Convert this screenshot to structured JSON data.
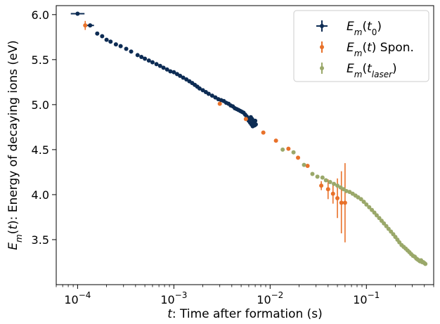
{
  "chart_data": {
    "type": "scatter",
    "x_scale": "log",
    "xlim": [
      6e-05,
      0.5
    ],
    "ylim": [
      3.0,
      6.1
    ],
    "grid": false,
    "legend_position": "top-right",
    "xlabel_parts": [
      {
        "text": "t",
        "italic": true
      },
      {
        "text": ": Time after formation (s)",
        "italic": false
      }
    ],
    "ylabel_parts": [
      {
        "text": "E",
        "italic": true
      },
      {
        "text": "m",
        "italic": true,
        "sub": true
      },
      {
        "text": "(",
        "italic": false
      },
      {
        "text": "t",
        "italic": true
      },
      {
        "text": "): Energy of decaying ions (eV)",
        "italic": false
      }
    ],
    "x_ticks": [
      {
        "value": 0.0001,
        "base": "10",
        "exp": "−4"
      },
      {
        "value": 0.001,
        "base": "10",
        "exp": "−3"
      },
      {
        "value": 0.01,
        "base": "10",
        "exp": "−2"
      },
      {
        "value": 0.1,
        "base": "10",
        "exp": "−1"
      }
    ],
    "y_ticks": [
      {
        "value": 3.5,
        "label": "3.5"
      },
      {
        "value": 4.0,
        "label": "4.0"
      },
      {
        "value": 4.5,
        "label": "4.5"
      },
      {
        "value": 5.0,
        "label": "5.0"
      },
      {
        "value": 5.5,
        "label": "5.5"
      },
      {
        "value": 6.0,
        "label": "6.0"
      }
    ],
    "series": [
      {
        "color": "#0d2c54",
        "legend_parts": [
          {
            "text": "E",
            "italic": true
          },
          {
            "text": "m",
            "italic": true,
            "sub": true
          },
          {
            "text": "(",
            "italic": false
          },
          {
            "text": "t",
            "italic": true
          },
          {
            "text": "0",
            "italic": false,
            "sub": true
          },
          {
            "text": ")",
            "italic": false
          }
        ],
        "points": [
          {
            "x": 0.0001,
            "y": 6.01,
            "xerr": [
              8.5e-05,
              0.000118
            ]
          },
          {
            "x": 0.000135,
            "y": 5.88,
            "xerr": [
              0.000125,
              0.000148
            ]
          },
          {
            "x": 0.00016,
            "y": 5.79
          },
          {
            "x": 0.00018,
            "y": 5.76
          },
          {
            "x": 0.0002,
            "y": 5.72
          },
          {
            "x": 0.00022,
            "y": 5.7
          },
          {
            "x": 0.00025,
            "y": 5.67
          },
          {
            "x": 0.00028,
            "y": 5.65
          },
          {
            "x": 0.00032,
            "y": 5.62
          },
          {
            "x": 0.00036,
            "y": 5.59
          },
          {
            "x": 0.00042,
            "y": 5.55
          },
          {
            "x": 0.00046,
            "y": 5.53
          },
          {
            "x": 0.0005,
            "y": 5.51
          },
          {
            "x": 0.00055,
            "y": 5.49
          },
          {
            "x": 0.0006,
            "y": 5.47
          },
          {
            "x": 0.00066,
            "y": 5.45
          },
          {
            "x": 0.00072,
            "y": 5.43
          },
          {
            "x": 0.00078,
            "y": 5.41
          },
          {
            "x": 0.00085,
            "y": 5.39
          },
          {
            "x": 0.00092,
            "y": 5.37
          },
          {
            "x": 0.001,
            "y": 5.36
          },
          {
            "x": 0.00108,
            "y": 5.34
          },
          {
            "x": 0.00116,
            "y": 5.32
          },
          {
            "x": 0.00125,
            "y": 5.3
          },
          {
            "x": 0.00135,
            "y": 5.28
          },
          {
            "x": 0.00145,
            "y": 5.26
          },
          {
            "x": 0.00155,
            "y": 5.24
          },
          {
            "x": 0.00165,
            "y": 5.22
          },
          {
            "x": 0.00175,
            "y": 5.2
          },
          {
            "x": 0.00185,
            "y": 5.18
          },
          {
            "x": 0.002,
            "y": 5.16
          },
          {
            "x": 0.00215,
            "y": 5.14
          },
          {
            "x": 0.0023,
            "y": 5.12
          },
          {
            "x": 0.0025,
            "y": 5.1
          },
          {
            "x": 0.0027,
            "y": 5.08
          },
          {
            "x": 0.0029,
            "y": 5.06
          },
          {
            "x": 0.0031,
            "y": 5.05
          },
          {
            "x": 0.0033,
            "y": 5.04
          },
          {
            "x": 0.0035,
            "y": 5.02
          },
          {
            "x": 0.0037,
            "y": 5.01
          },
          {
            "x": 0.0039,
            "y": 4.99
          },
          {
            "x": 0.0041,
            "y": 4.98
          },
          {
            "x": 0.0043,
            "y": 4.96
          },
          {
            "x": 0.0045,
            "y": 4.95
          },
          {
            "x": 0.0047,
            "y": 4.94
          },
          {
            "x": 0.0049,
            "y": 4.93
          },
          {
            "x": 0.0051,
            "y": 4.92
          },
          {
            "x": 0.0053,
            "y": 4.91
          },
          {
            "x": 0.0055,
            "y": 4.89
          },
          {
            "x": 0.0057,
            "y": 4.87
          },
          {
            "x": 0.0059,
            "y": 4.85
          },
          {
            "x": 0.006,
            "y": 4.82
          },
          {
            "x": 0.0062,
            "y": 4.8
          },
          {
            "x": 0.0063,
            "y": 4.86
          },
          {
            "x": 0.0064,
            "y": 4.78
          },
          {
            "x": 0.0065,
            "y": 4.84
          },
          {
            "x": 0.0066,
            "y": 4.76
          },
          {
            "x": 0.0067,
            "y": 4.81
          },
          {
            "x": 0.0068,
            "y": 4.79
          },
          {
            "x": 0.0069,
            "y": 4.77
          },
          {
            "x": 0.007,
            "y": 4.82
          },
          {
            "x": 0.0071,
            "y": 4.78
          }
        ]
      },
      {
        "color": "#e8712a",
        "legend_parts": [
          {
            "text": "E",
            "italic": true
          },
          {
            "text": "m",
            "italic": true,
            "sub": true
          },
          {
            "text": "(",
            "italic": false
          },
          {
            "text": "t",
            "italic": true
          },
          {
            "text": ") Spon.",
            "italic": false
          }
        ],
        "points": [
          {
            "x": 0.00012,
            "y": 5.88,
            "yerr": [
              5.83,
              5.93
            ]
          },
          {
            "x": 0.003,
            "y": 5.01
          },
          {
            "x": 0.0056,
            "y": 4.84
          },
          {
            "x": 0.0085,
            "y": 4.69
          },
          {
            "x": 0.0115,
            "y": 4.6
          },
          {
            "x": 0.0155,
            "y": 4.51
          },
          {
            "x": 0.0195,
            "y": 4.41
          },
          {
            "x": 0.0245,
            "y": 4.32
          },
          {
            "x": 0.034,
            "y": 4.1,
            "yerr": [
              4.05,
              4.15
            ]
          },
          {
            "x": 0.04,
            "y": 4.06,
            "yerr": [
              3.95,
              4.17
            ]
          },
          {
            "x": 0.045,
            "y": 4.01,
            "yerr": [
              3.9,
              4.12
            ]
          },
          {
            "x": 0.05,
            "y": 3.96,
            "yerr": [
              3.74,
              4.18
            ]
          },
          {
            "x": 0.055,
            "y": 3.91,
            "yerr": [
              3.57,
              4.26
            ]
          },
          {
            "x": 0.06,
            "y": 3.91,
            "yerr": [
              3.47,
              4.35
            ]
          }
        ]
      },
      {
        "color": "#9aa86a",
        "legend_parts": [
          {
            "text": "E",
            "italic": true
          },
          {
            "text": "m",
            "italic": true,
            "sub": true
          },
          {
            "text": "(",
            "italic": false
          },
          {
            "text": "t",
            "italic": true
          },
          {
            "text": "laser",
            "italic": true,
            "sub": true
          },
          {
            "text": ")",
            "italic": false
          }
        ],
        "points": [
          {
            "x": 0.0135,
            "y": 4.5
          },
          {
            "x": 0.0175,
            "y": 4.47
          },
          {
            "x": 0.0225,
            "y": 4.33
          },
          {
            "x": 0.0275,
            "y": 4.23
          },
          {
            "x": 0.031,
            "y": 4.2
          },
          {
            "x": 0.035,
            "y": 4.19
          },
          {
            "x": 0.038,
            "y": 4.16
          },
          {
            "x": 0.042,
            "y": 4.14
          },
          {
            "x": 0.046,
            "y": 4.12
          },
          {
            "x": 0.05,
            "y": 4.1
          },
          {
            "x": 0.054,
            "y": 4.08
          },
          {
            "x": 0.058,
            "y": 4.06
          },
          {
            "x": 0.062,
            "y": 4.04
          },
          {
            "x": 0.067,
            "y": 4.03
          },
          {
            "x": 0.072,
            "y": 4.01
          },
          {
            "x": 0.077,
            "y": 3.99
          },
          {
            "x": 0.082,
            "y": 3.97
          },
          {
            "x": 0.088,
            "y": 3.95
          },
          {
            "x": 0.094,
            "y": 3.92
          },
          {
            "x": 0.1,
            "y": 3.89
          },
          {
            "x": 0.107,
            "y": 3.86
          },
          {
            "x": 0.114,
            "y": 3.83
          },
          {
            "x": 0.121,
            "y": 3.8
          },
          {
            "x": 0.128,
            "y": 3.77
          },
          {
            "x": 0.136,
            "y": 3.74
          },
          {
            "x": 0.144,
            "y": 3.71
          },
          {
            "x": 0.152,
            "y": 3.68
          },
          {
            "x": 0.161,
            "y": 3.65
          },
          {
            "x": 0.17,
            "y": 3.62
          },
          {
            "x": 0.18,
            "y": 3.59
          },
          {
            "x": 0.19,
            "y": 3.56
          },
          {
            "x": 0.2,
            "y": 3.53
          },
          {
            "x": 0.21,
            "y": 3.5
          },
          {
            "x": 0.22,
            "y": 3.47
          },
          {
            "x": 0.232,
            "y": 3.44
          },
          {
            "x": 0.244,
            "y": 3.42
          },
          {
            "x": 0.256,
            "y": 3.4
          },
          {
            "x": 0.268,
            "y": 3.38
          },
          {
            "x": 0.28,
            "y": 3.36
          },
          {
            "x": 0.292,
            "y": 3.34
          },
          {
            "x": 0.305,
            "y": 3.32
          },
          {
            "x": 0.318,
            "y": 3.31
          },
          {
            "x": 0.33,
            "y": 3.29
          },
          {
            "x": 0.34,
            "y": 3.28
          },
          {
            "x": 0.35,
            "y": 3.27
          },
          {
            "x": 0.36,
            "y": 3.26
          },
          {
            "x": 0.37,
            "y": 3.27
          },
          {
            "x": 0.38,
            "y": 3.25
          },
          {
            "x": 0.39,
            "y": 3.25
          },
          {
            "x": 0.4,
            "y": 3.24
          },
          {
            "x": 0.41,
            "y": 3.23
          }
        ]
      }
    ]
  }
}
